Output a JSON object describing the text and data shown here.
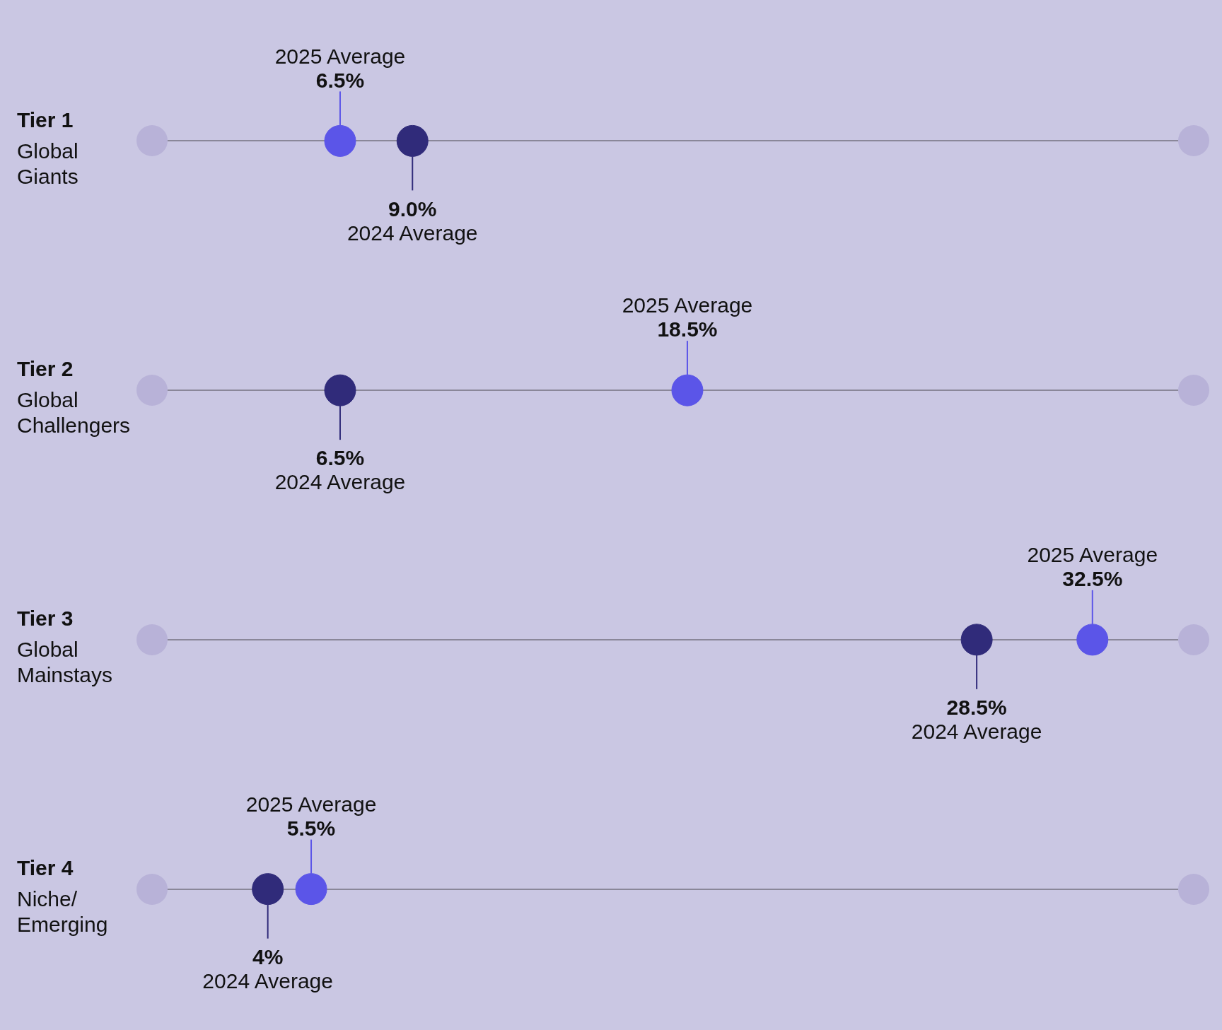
{
  "chart_data": {
    "type": "scatter",
    "orientation": "horizontal",
    "categories": [
      "Tier 1\nGlobal\nGiants",
      "Tier 2\nGlobal\nChallengers",
      "Tier 3\nGlobal\nMainstays",
      "Tier 4\nNiche/\nEmerging"
    ],
    "series": [
      {
        "name": "2025 Average",
        "color": "#5b55e8",
        "values": [
          6.5,
          18.5,
          32.5,
          5.5
        ],
        "value_labels": [
          "6.5%",
          "18.5%",
          "32.5%",
          "5.5%"
        ]
      },
      {
        "name": "2024 Average",
        "color": "#302b7a",
        "values": [
          9.0,
          6.5,
          28.5,
          4
        ],
        "value_labels": [
          "9.0%",
          "6.5%",
          "28.5%",
          "4%"
        ]
      }
    ],
    "xlim": [
      0,
      36
    ],
    "tick_labels": "y",
    "grid": "y",
    "marker": "circle",
    "legend": false
  }
}
